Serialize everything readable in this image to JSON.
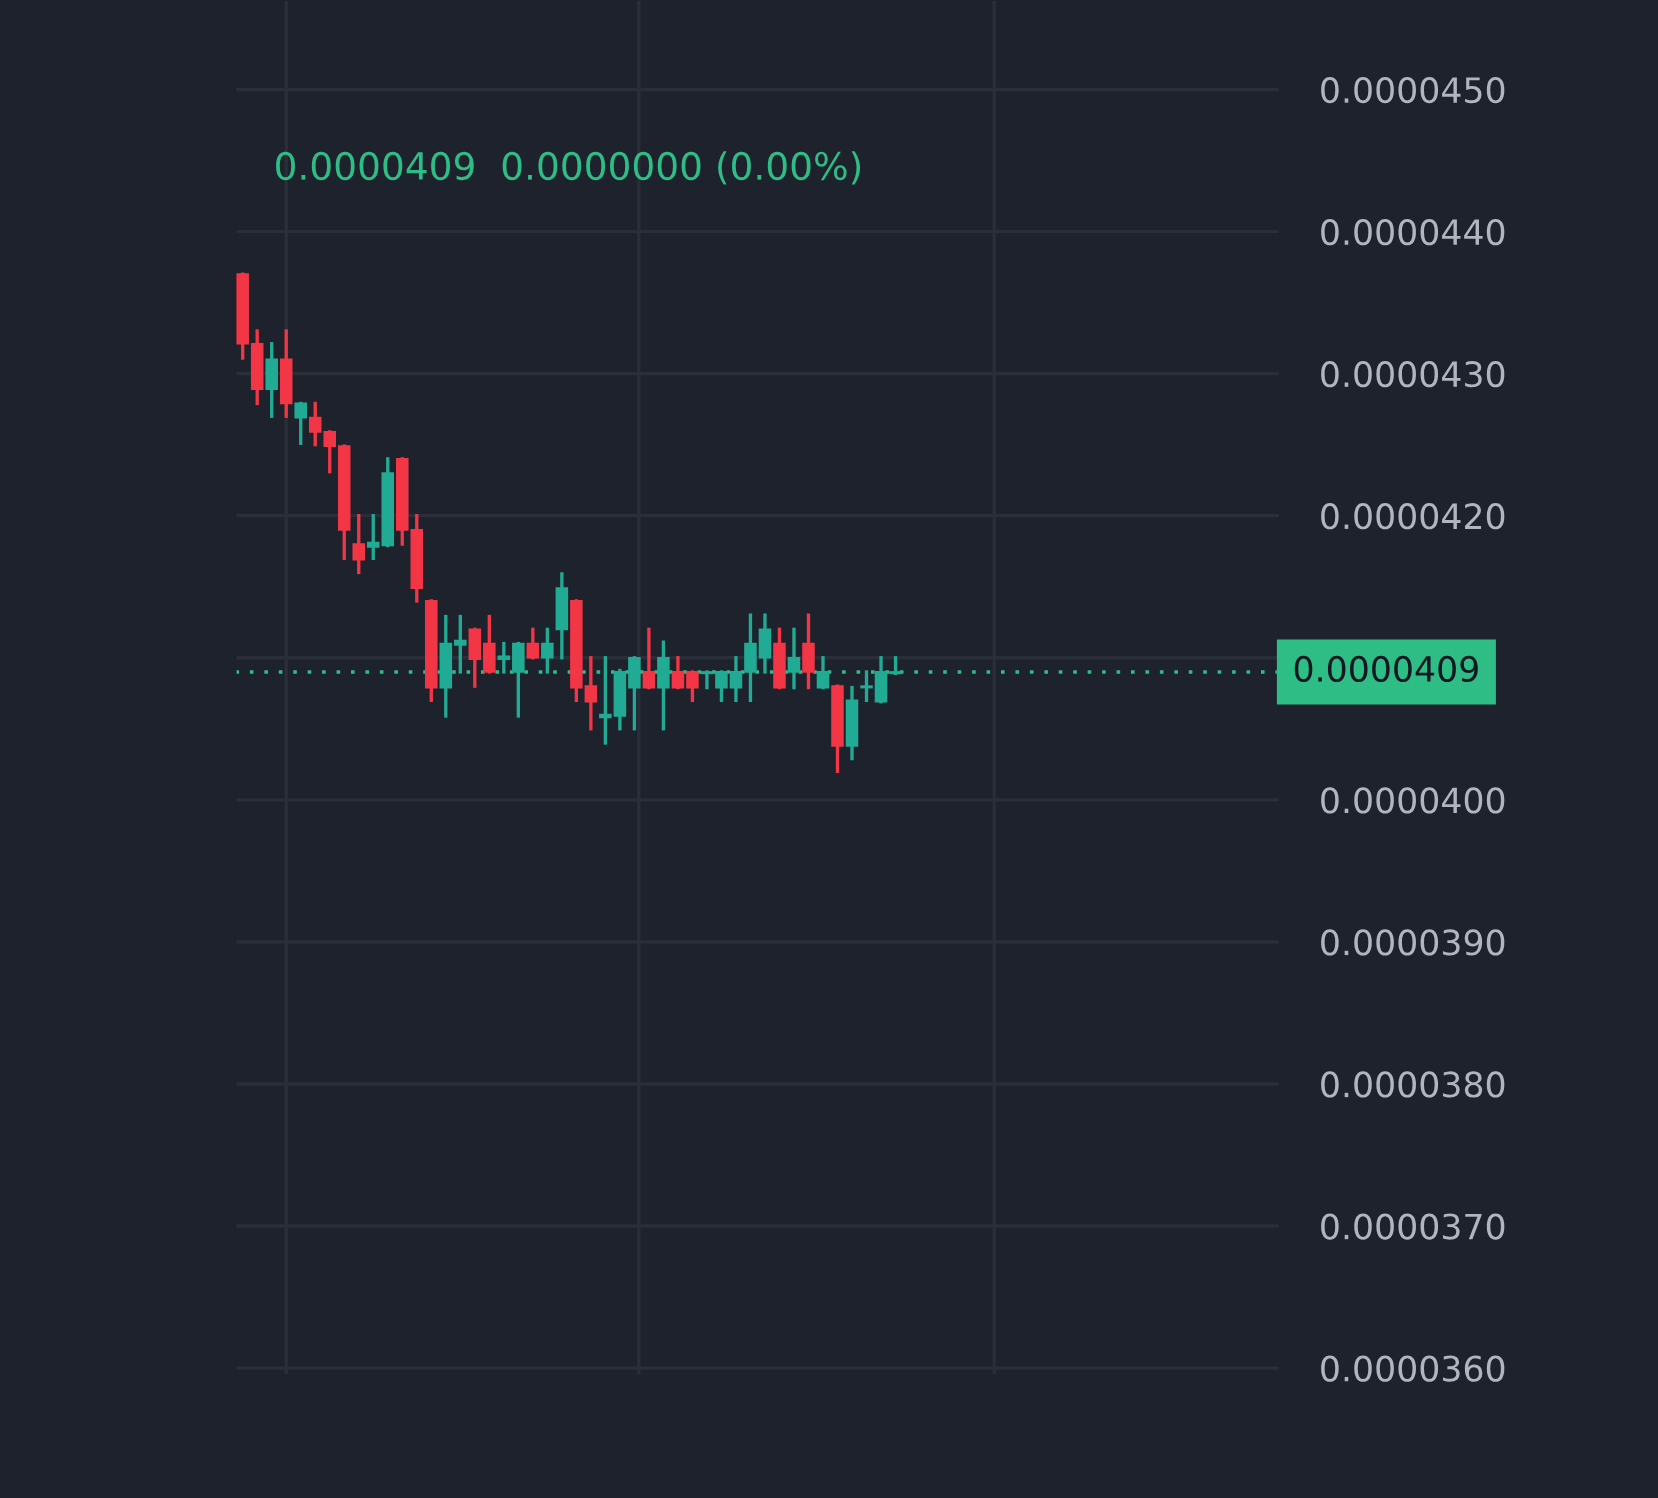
{
  "chart_data": {
    "type": "candlestick",
    "subtitle": "0.0000409  0.0000000 (0.00%)",
    "categories": [
      null,
      null,
      null,
      null,
      null,
      null,
      null,
      null,
      null,
      null,
      null,
      null,
      null,
      null,
      null,
      null,
      null,
      null,
      null,
      null,
      null,
      null,
      null,
      null,
      null,
      null,
      null,
      null,
      null,
      null,
      null,
      null,
      null,
      null,
      null,
      null,
      null,
      null,
      null,
      null,
      null,
      null,
      null,
      null,
      null,
      null,
      null,
      null,
      null,
      null,
      null,
      null,
      null,
      null,
      null,
      null,
      null,
      null,
      null,
      null,
      null,
      null,
      null,
      null,
      null,
      null,
      null,
      null,
      null,
      null,
      null,
      null
    ],
    "ohlc": [
      [
        4.37e-05,
        4.37e-05,
        4.311e-05,
        4.321e-05
      ],
      [
        4.321e-05,
        4.33e-05,
        4.279e-05,
        4.289e-05
      ],
      [
        4.289e-05,
        4.321e-05,
        4.27e-05,
        4.31e-05
      ],
      [
        4.31e-05,
        4.33e-05,
        4.27e-05,
        4.279e-05
      ],
      [
        4.269e-05,
        4.279e-05,
        4.251e-05,
        4.279e-05
      ],
      [
        4.269e-05,
        4.279e-05,
        4.25e-05,
        4.259e-05
      ],
      [
        4.259e-05,
        4.259e-05,
        4.231e-05,
        4.249e-05
      ],
      [
        4.249e-05,
        4.249e-05,
        4.17e-05,
        4.19e-05
      ],
      [
        4.18e-05,
        4.2e-05,
        4.16e-05,
        4.169e-05
      ],
      [
        4.178e-05,
        4.2e-05,
        4.17e-05,
        4.181e-05
      ],
      [
        4.179e-05,
        4.24e-05,
        4.179e-05,
        4.23e-05
      ],
      [
        4.24e-05,
        4.24e-05,
        4.18e-05,
        4.19e-05
      ],
      [
        4.19e-05,
        4.2e-05,
        4.14e-05,
        4.149e-05
      ],
      [
        4.14e-05,
        4.14e-05,
        4.07e-05,
        4.079e-05
      ],
      [
        4.079e-05,
        4.129e-05,
        4.059e-05,
        4.11e-05
      ],
      [
        4.109e-05,
        4.129e-05,
        4.09e-05,
        4.112e-05
      ],
      [
        4.12e-05,
        4.12e-05,
        4.08e-05,
        4.099e-05
      ],
      [
        4.11e-05,
        4.129e-05,
        4.09e-05,
        4.09e-05
      ],
      [
        4.099e-05,
        4.11e-05,
        4.09e-05,
        4.101e-05
      ],
      [
        4.09e-05,
        4.11e-05,
        4.059e-05,
        4.11e-05
      ],
      [
        4.11e-05,
        4.12e-05,
        4.1e-05,
        4.1e-05
      ],
      [
        4.1e-05,
        4.12e-05,
        4.09e-05,
        4.11e-05
      ],
      [
        4.12e-05,
        4.159e-05,
        4.1e-05,
        4.149e-05
      ],
      [
        4.14e-05,
        4.14e-05,
        4.07e-05,
        4.079e-05
      ],
      [
        4.08e-05,
        4.1e-05,
        4.05e-05,
        4.069e-05
      ],
      [
        4.058e-05,
        4.1e-05,
        4.04e-05,
        4.06e-05
      ],
      [
        4.059e-05,
        4.091e-05,
        4.05e-05,
        4.09e-05
      ],
      [
        4.079e-05,
        4.1e-05,
        4.05e-05,
        4.1e-05
      ],
      [
        4.09e-05,
        4.12e-05,
        4.079e-05,
        4.079e-05
      ],
      [
        4.079e-05,
        4.111e-05,
        4.05e-05,
        4.1e-05
      ],
      [
        4.09e-05,
        4.1e-05,
        4.079e-05,
        4.079e-05
      ],
      [
        4.09e-05,
        4.09e-05,
        4.07e-05,
        4.079e-05
      ],
      [
        4.089e-05,
        4.09e-05,
        4.079e-05,
        4.09e-05
      ],
      [
        4.079e-05,
        4.09e-05,
        4.07e-05,
        4.09e-05
      ],
      [
        4.079e-05,
        4.1e-05,
        4.07e-05,
        4.09e-05
      ],
      [
        4.09e-05,
        4.13e-05,
        4.07e-05,
        4.11e-05
      ],
      [
        4.1e-05,
        4.13e-05,
        4.09e-05,
        4.12e-05
      ],
      [
        4.11e-05,
        4.12e-05,
        4.079e-05,
        4.079e-05
      ],
      [
        4.09e-05,
        4.12e-05,
        4.079e-05,
        4.1e-05
      ],
      [
        4.11e-05,
        4.13e-05,
        4.079e-05,
        4.09e-05
      ],
      [
        4.079e-05,
        4.1e-05,
        4.079e-05,
        4.09e-05
      ],
      [
        4.08e-05,
        4.08e-05,
        4.02e-05,
        4.038e-05
      ],
      [
        4.038e-05,
        4.079e-05,
        4.029e-05,
        4.07e-05
      ],
      [
        4.079e-05,
        4.09e-05,
        4.07e-05,
        4.08e-05
      ],
      [
        4.069e-05,
        4.1e-05,
        4.069e-05,
        4.09e-05
      ],
      [
        4.089e-05,
        4.1e-05,
        4.089e-05,
        4.09e-05
      ],
      null,
      null,
      null,
      null,
      null,
      null,
      null,
      null,
      null,
      null,
      null,
      null,
      null,
      null,
      null,
      null,
      null,
      null,
      null,
      null,
      null,
      null,
      null,
      null,
      null,
      null
    ],
    "colors": [
      "#f23645",
      "#f23645",
      "#22ab94",
      "#f23645",
      "#22ab94",
      "#f23645",
      "#f23645",
      "#f23645",
      "#f23645",
      "#22ab94",
      "#22ab94",
      "#f23645",
      "#f23645",
      "#f23645",
      "#22ab94",
      "#22ab94",
      "#f23645",
      "#f23645",
      "#22ab94",
      "#22ab94",
      "#f23645",
      "#22ab94",
      "#22ab94",
      "#f23645",
      "#f23645",
      "#22ab94",
      "#22ab94",
      "#22ab94",
      "#f23645",
      "#22ab94",
      "#f23645",
      "#f23645",
      "#22ab94",
      "#22ab94",
      "#22ab94",
      "#22ab94",
      "#22ab94",
      "#f23645",
      "#22ab94",
      "#f23645",
      "#22ab94",
      "#f23645",
      "#22ab94",
      "#22ab94",
      "#22ab94",
      "#22ab94",
      null,
      null,
      null,
      null,
      null,
      null,
      null,
      null,
      null,
      null,
      null,
      null,
      null,
      null,
      null,
      null,
      null,
      null,
      null,
      null,
      null,
      null,
      null,
      null,
      null,
      null
    ],
    "ylim": [
      3.595e-05,
      4.563e-05
    ],
    "yticks": [
      {
        "value": 3.6e-05,
        "label": "0.0000360"
      },
      {
        "value": 3.7e-05,
        "label": "0.0000370"
      },
      {
        "value": 3.8e-05,
        "label": "0.0000380"
      },
      {
        "value": 3.9e-05,
        "label": "0.0000390"
      },
      {
        "value": 4e-05,
        "label": "0.0000400"
      },
      {
        "value": 4.1e-05,
        "label": null
      },
      {
        "value": 4.2e-05,
        "label": "0.0000420"
      },
      {
        "value": 4.3e-05,
        "label": "0.0000430"
      },
      {
        "value": 4.4e-05,
        "label": "0.0000440"
      },
      {
        "value": 4.5e-05,
        "label": "0.0000450"
      }
    ],
    "ref_lines": [
      {
        "axis": "y",
        "value": 4.09e-05,
        "label": "0.0000409",
        "color": "#2ebd85",
        "line_style": "dotted"
      }
    ],
    "grid": true,
    "tick_labels": "y"
  }
}
